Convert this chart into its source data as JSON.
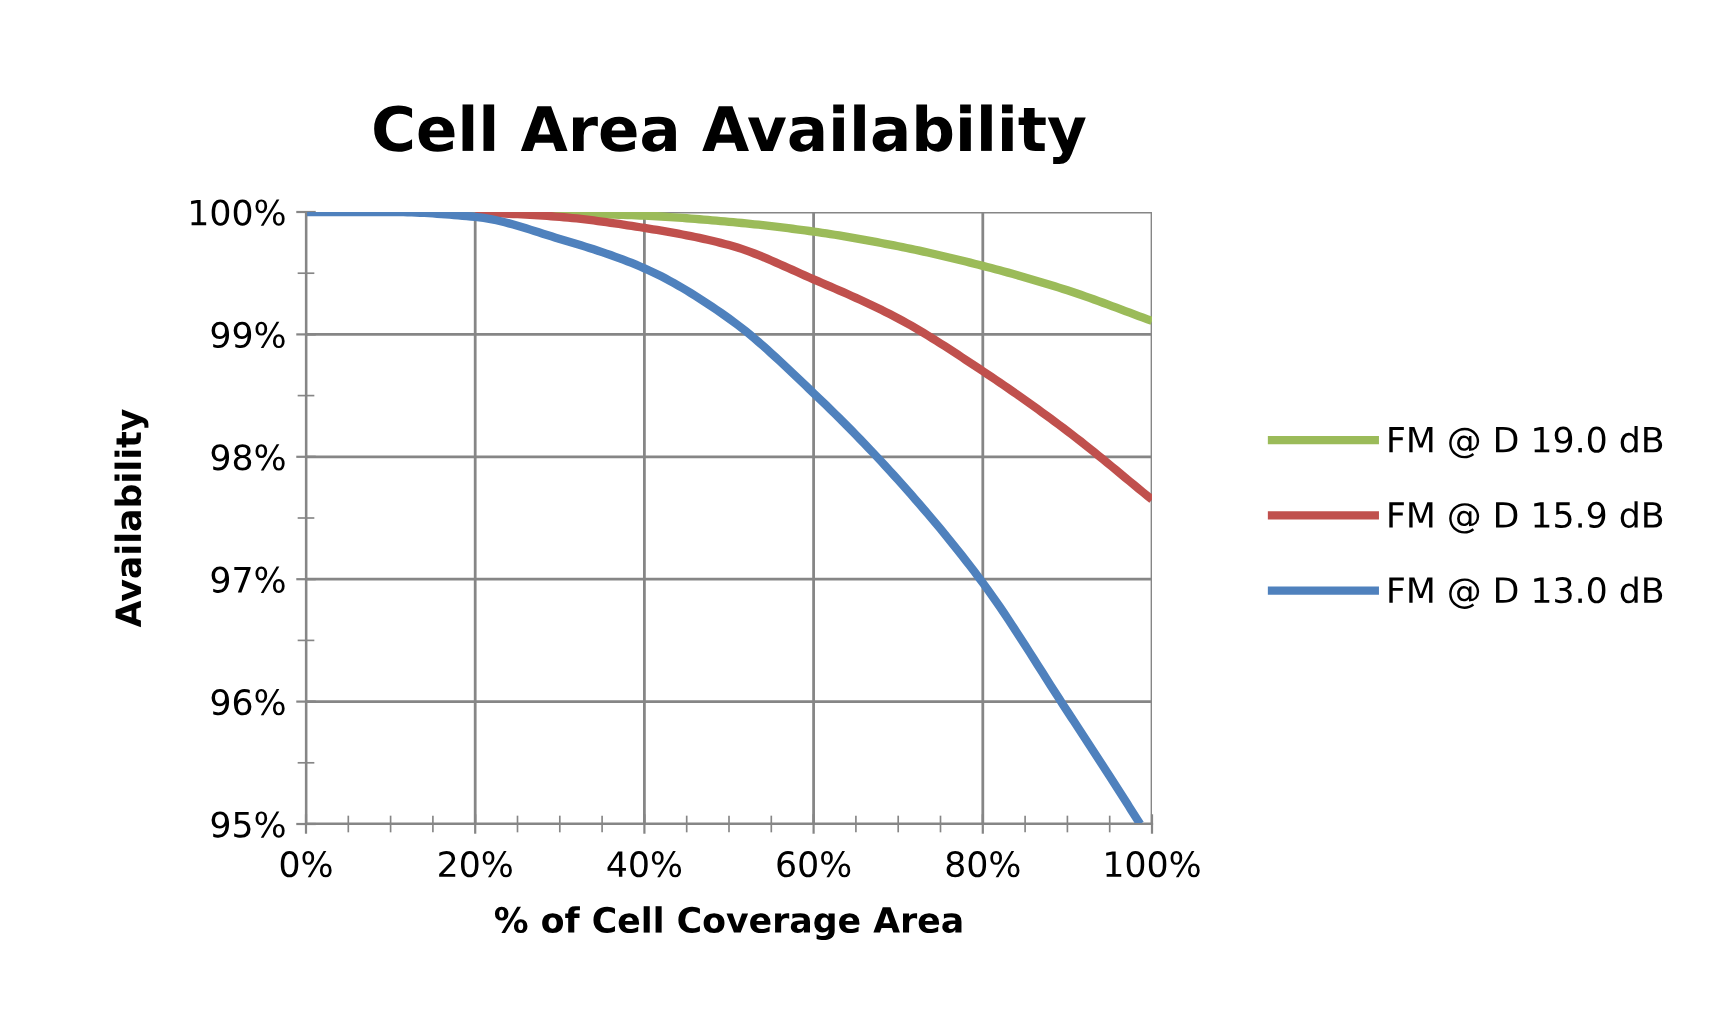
{
  "chart_data": {
    "type": "line",
    "title": "Cell Area Availability",
    "xlabel": "% of Cell Coverage Area",
    "ylabel": "Availability",
    "xlim": [
      0,
      100
    ],
    "ylim": [
      95,
      100
    ],
    "xticks": [
      {
        "value": 0,
        "label": "0%"
      },
      {
        "value": 5,
        "label": null
      },
      {
        "value": 10,
        "label": null
      },
      {
        "value": 15,
        "label": null
      },
      {
        "value": 20,
        "label": "20%"
      },
      {
        "value": 25,
        "label": null
      },
      {
        "value": 30,
        "label": null
      },
      {
        "value": 35,
        "label": null
      },
      {
        "value": 40,
        "label": "40%"
      },
      {
        "value": 45,
        "label": null
      },
      {
        "value": 50,
        "label": null
      },
      {
        "value": 55,
        "label": null
      },
      {
        "value": 60,
        "label": "60%"
      },
      {
        "value": 65,
        "label": null
      },
      {
        "value": 70,
        "label": null
      },
      {
        "value": 75,
        "label": null
      },
      {
        "value": 80,
        "label": "80%"
      },
      {
        "value": 85,
        "label": null
      },
      {
        "value": 90,
        "label": null
      },
      {
        "value": 95,
        "label": null
      },
      {
        "value": 100,
        "label": "100%"
      }
    ],
    "yticks": [
      {
        "value": 95,
        "label": "95%"
      },
      {
        "value": 95.5,
        "label": null
      },
      {
        "value": 96,
        "label": "96%"
      },
      {
        "value": 96.5,
        "label": null
      },
      {
        "value": 97,
        "label": "97%"
      },
      {
        "value": 97.5,
        "label": null
      },
      {
        "value": 98,
        "label": "98%"
      },
      {
        "value": 98.5,
        "label": null
      },
      {
        "value": 99,
        "label": "99%"
      },
      {
        "value": 99.5,
        "label": null
      },
      {
        "value": 100,
        "label": "100%"
      }
    ],
    "grid": true,
    "legend": "right",
    "marker": "none",
    "line_style": "solid",
    "series": [
      {
        "name": "FM @ D 19.0 dB",
        "color": "#9bbb59",
        "x": [
          20,
          30,
          40,
          50,
          60,
          70,
          80,
          90,
          100
        ],
        "values": [
          100,
          99.99,
          99.97,
          99.92,
          99.84,
          99.72,
          99.56,
          99.36,
          99.11
        ]
      },
      {
        "name": "FM @ D 15.9 dB",
        "color": "#c0504d",
        "x": [
          20,
          30,
          40,
          50,
          60,
          70,
          80,
          90,
          100
        ],
        "values": [
          100,
          99.96,
          99.87,
          99.73,
          99.45,
          99.13,
          98.7,
          98.21,
          97.65
        ]
      },
      {
        "name": "FM @ D 13.0 dB",
        "color": "#4f81bd",
        "x": [
          0,
          10,
          20,
          30,
          40,
          50,
          60,
          70,
          80,
          90,
          95,
          98.6
        ],
        "values": [
          100,
          100,
          99.96,
          99.78,
          99.54,
          99.13,
          98.52,
          97.81,
          96.97,
          95.92,
          95.39,
          95
        ]
      }
    ]
  }
}
